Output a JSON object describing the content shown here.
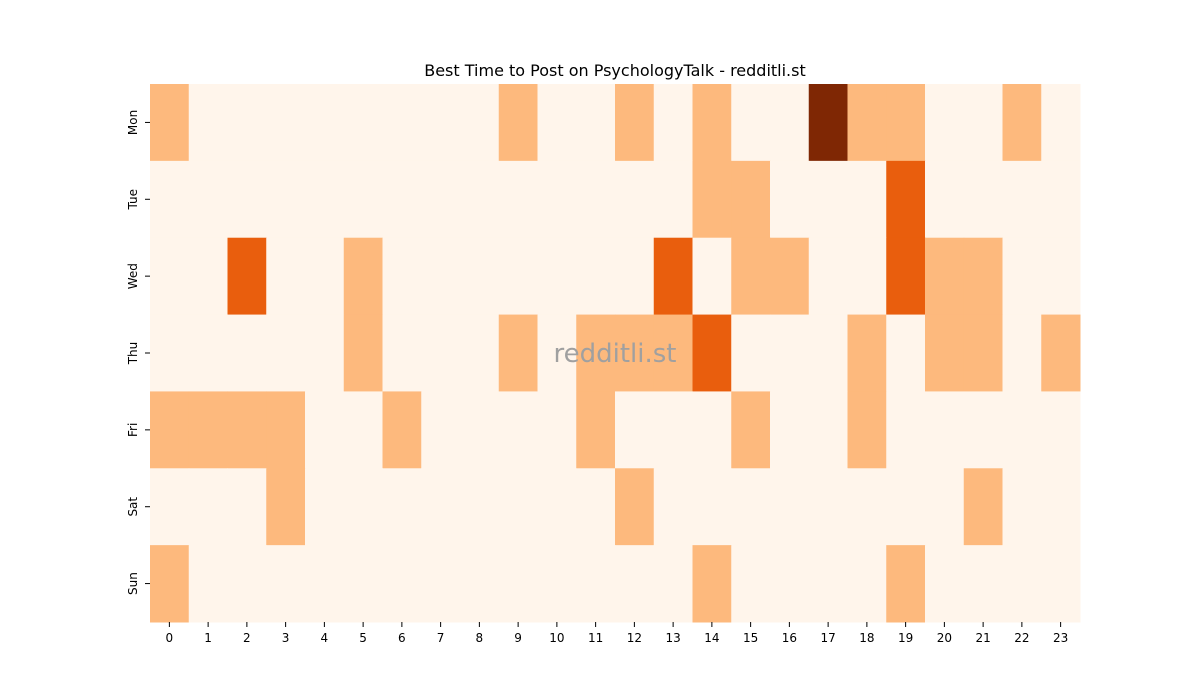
{
  "chart_data": {
    "type": "heatmap",
    "title": "Best Time to Post on PsychologyTalk - redditli.st",
    "xlabel": "",
    "ylabel": "",
    "x_categories": [
      "0",
      "1",
      "2",
      "3",
      "4",
      "5",
      "6",
      "7",
      "8",
      "9",
      "10",
      "11",
      "12",
      "13",
      "14",
      "15",
      "16",
      "17",
      "18",
      "19",
      "20",
      "21",
      "22",
      "23"
    ],
    "y_categories": [
      "Mon",
      "Tue",
      "Wed",
      "Thu",
      "Fri",
      "Sat",
      "Sun"
    ],
    "values": [
      [
        1,
        0,
        0,
        0,
        0,
        0,
        0,
        0,
        0,
        1,
        0,
        0,
        1,
        0,
        1,
        0,
        0,
        3,
        1,
        1,
        0,
        0,
        1,
        0
      ],
      [
        0,
        0,
        0,
        0,
        0,
        0,
        0,
        0,
        0,
        0,
        0,
        0,
        0,
        0,
        1,
        1,
        0,
        0,
        0,
        2,
        0,
        0,
        0,
        0
      ],
      [
        0,
        0,
        2,
        0,
        0,
        1,
        0,
        0,
        0,
        0,
        0,
        0,
        0,
        2,
        0,
        1,
        1,
        0,
        0,
        2,
        1,
        1,
        0,
        0
      ],
      [
        0,
        0,
        0,
        0,
        0,
        1,
        0,
        0,
        0,
        1,
        0,
        1,
        1,
        1,
        2,
        0,
        0,
        0,
        1,
        0,
        1,
        1,
        0,
        1
      ],
      [
        1,
        1,
        1,
        1,
        0,
        0,
        1,
        0,
        0,
        0,
        0,
        1,
        0,
        0,
        0,
        1,
        0,
        0,
        1,
        0,
        0,
        0,
        0,
        0
      ],
      [
        0,
        0,
        0,
        1,
        0,
        0,
        0,
        0,
        0,
        0,
        0,
        0,
        1,
        0,
        0,
        0,
        0,
        0,
        0,
        0,
        0,
        1,
        0,
        0
      ],
      [
        1,
        0,
        0,
        0,
        0,
        0,
        0,
        0,
        0,
        0,
        0,
        0,
        0,
        0,
        1,
        0,
        0,
        0,
        0,
        1,
        0,
        0,
        0,
        0
      ]
    ],
    "colormap": {
      "0": "#fff5eb",
      "1": "#fdb97d",
      "2": "#e95e0d",
      "3": "#7f2704"
    },
    "colorbar": false,
    "grid": false,
    "watermark": "redditli.st"
  }
}
